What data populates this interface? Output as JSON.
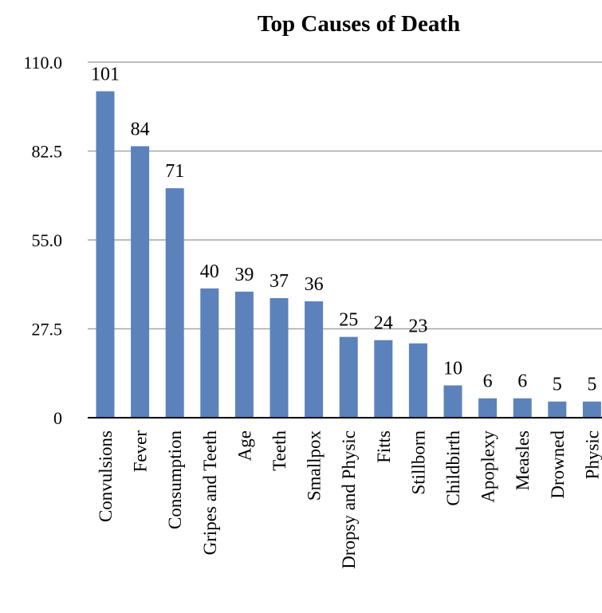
{
  "chart_data": {
    "type": "bar",
    "title": "Top Causes of Death",
    "xlabel": "",
    "ylabel": "",
    "categories": [
      "Convulsions",
      "Fever",
      "Consumption",
      "Gripes and Teeth",
      "Age",
      "Teeth",
      "Smallpox",
      "Dropsy and Physic",
      "Fitts",
      "Stillborn",
      "Childbirth",
      "Apoplexy",
      "Measles",
      "Drowned",
      "Physic"
    ],
    "values": [
      101,
      84,
      71,
      40,
      39,
      37,
      36,
      25,
      24,
      23,
      10,
      6,
      6,
      5,
      5
    ],
    "ylim": [
      0,
      110
    ],
    "yticks": [
      0,
      27.5,
      55,
      82.5,
      110
    ],
    "ytick_labels": [
      "0",
      "27.5",
      "55.0",
      "82.5",
      "110.0"
    ],
    "grid": true,
    "legend": "none",
    "bar_color": "#5b82bb",
    "gridline_color": "#a6a6a6"
  }
}
